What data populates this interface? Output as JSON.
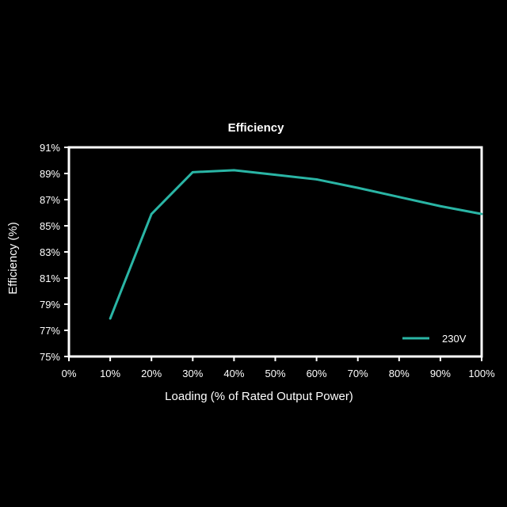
{
  "chart_data": {
    "type": "line",
    "title": "Efficiency",
    "xlabel": "Loading (% of Rated Output Power)",
    "ylabel": "Efficiency (%)",
    "x_tick_labels": [
      "0%",
      "10%",
      "20%",
      "30%",
      "40%",
      "50%",
      "60%",
      "70%",
      "80%",
      "90%",
      "100%"
    ],
    "y_tick_labels": [
      "75%",
      "77%",
      "79%",
      "81%",
      "83%",
      "85%",
      "87%",
      "89%",
      "91%"
    ],
    "xlim": [
      0,
      100
    ],
    "ylim": [
      75,
      91
    ],
    "grid": false,
    "legend_position": "bottom-right",
    "series": [
      {
        "name": "230V",
        "color": "#2ab5a5",
        "x": [
          10,
          20,
          30,
          40,
          50,
          60,
          70,
          80,
          90,
          100
        ],
        "values": [
          77.9,
          85.9,
          89.1,
          89.25,
          88.9,
          88.55,
          87.9,
          87.2,
          86.5,
          85.9
        ]
      }
    ]
  }
}
